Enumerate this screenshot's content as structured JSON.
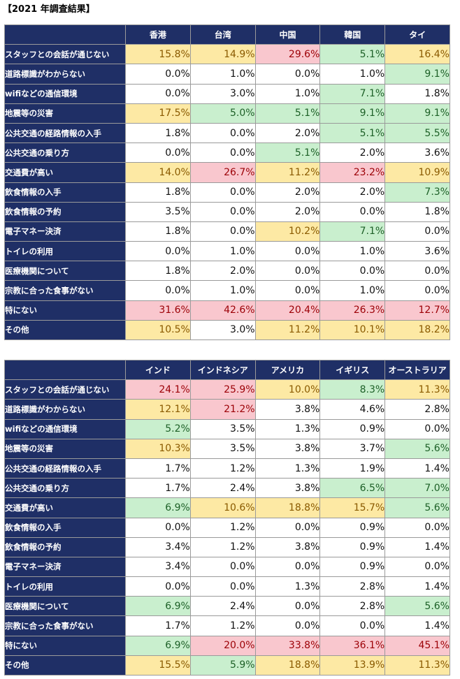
{
  "title": "【2021 年調査結果】",
  "colors": {
    "header_bg": "#1f2f66",
    "yellow": "#fde9a4",
    "green": "#c9efce",
    "red": "#f9c7ce"
  },
  "row_labels": [
    "スタッフとの会話が通じない",
    "道路標識がわからない",
    "wifiなどの通信環境",
    "地震等の災害",
    "公共交通の経路情報の入手",
    "公共交通の乗り方",
    "交通費が高い",
    "飲食情報の入手",
    "飲食情報の予約",
    "電子マネー決済",
    "トイレの利用",
    "医療機関について",
    "宗教に合った食事がない",
    "特にない",
    "その他"
  ],
  "tables": [
    {
      "columns": [
        "香港",
        "台湾",
        "中国",
        "韓国",
        "タイ"
      ],
      "rows": [
        [
          [
            "15.8%",
            "y"
          ],
          [
            "14.9%",
            "y"
          ],
          [
            "29.6%",
            "r"
          ],
          [
            "5.1%",
            "g"
          ],
          [
            "16.4%",
            "y"
          ]
        ],
        [
          [
            "0.0%",
            ""
          ],
          [
            "1.0%",
            ""
          ],
          [
            "0.0%",
            ""
          ],
          [
            "1.0%",
            ""
          ],
          [
            "9.1%",
            "g"
          ]
        ],
        [
          [
            "0.0%",
            ""
          ],
          [
            "3.0%",
            ""
          ],
          [
            "1.0%",
            ""
          ],
          [
            "7.1%",
            "g"
          ],
          [
            "1.8%",
            ""
          ]
        ],
        [
          [
            "17.5%",
            "y"
          ],
          [
            "5.0%",
            "g"
          ],
          [
            "5.1%",
            "g"
          ],
          [
            "9.1%",
            "g"
          ],
          [
            "9.1%",
            "g"
          ]
        ],
        [
          [
            "1.8%",
            ""
          ],
          [
            "0.0%",
            ""
          ],
          [
            "2.0%",
            ""
          ],
          [
            "5.1%",
            "g"
          ],
          [
            "5.5%",
            "g"
          ]
        ],
        [
          [
            "0.0%",
            ""
          ],
          [
            "0.0%",
            ""
          ],
          [
            "5.1%",
            "g"
          ],
          [
            "2.0%",
            ""
          ],
          [
            "3.6%",
            ""
          ]
        ],
        [
          [
            "14.0%",
            "y"
          ],
          [
            "26.7%",
            "r"
          ],
          [
            "11.2%",
            "y"
          ],
          [
            "23.2%",
            "r"
          ],
          [
            "10.9%",
            "y"
          ]
        ],
        [
          [
            "1.8%",
            ""
          ],
          [
            "0.0%",
            ""
          ],
          [
            "2.0%",
            ""
          ],
          [
            "2.0%",
            ""
          ],
          [
            "7.3%",
            "g"
          ]
        ],
        [
          [
            "3.5%",
            ""
          ],
          [
            "0.0%",
            ""
          ],
          [
            "2.0%",
            ""
          ],
          [
            "0.0%",
            ""
          ],
          [
            "1.8%",
            ""
          ]
        ],
        [
          [
            "1.8%",
            ""
          ],
          [
            "0.0%",
            ""
          ],
          [
            "10.2%",
            "y"
          ],
          [
            "7.1%",
            "g"
          ],
          [
            "0.0%",
            ""
          ]
        ],
        [
          [
            "0.0%",
            ""
          ],
          [
            "1.0%",
            ""
          ],
          [
            "0.0%",
            ""
          ],
          [
            "1.0%",
            ""
          ],
          [
            "3.6%",
            ""
          ]
        ],
        [
          [
            "1.8%",
            ""
          ],
          [
            "2.0%",
            ""
          ],
          [
            "0.0%",
            ""
          ],
          [
            "0.0%",
            ""
          ],
          [
            "0.0%",
            ""
          ]
        ],
        [
          [
            "0.0%",
            ""
          ],
          [
            "1.0%",
            ""
          ],
          [
            "0.0%",
            ""
          ],
          [
            "1.0%",
            ""
          ],
          [
            "0.0%",
            ""
          ]
        ],
        [
          [
            "31.6%",
            "r"
          ],
          [
            "42.6%",
            "r"
          ],
          [
            "20.4%",
            "r"
          ],
          [
            "26.3%",
            "r"
          ],
          [
            "12.7%",
            "r"
          ]
        ],
        [
          [
            "10.5%",
            "y"
          ],
          [
            "3.0%",
            ""
          ],
          [
            "11.2%",
            "y"
          ],
          [
            "10.1%",
            "y"
          ],
          [
            "18.2%",
            "y"
          ]
        ]
      ]
    },
    {
      "columns": [
        "インド",
        "インドネシア",
        "アメリカ",
        "イギリス",
        "オーストラリア"
      ],
      "rows": [
        [
          [
            "24.1%",
            "r"
          ],
          [
            "25.9%",
            "r"
          ],
          [
            "10.0%",
            "y"
          ],
          [
            "8.3%",
            "g"
          ],
          [
            "11.3%",
            "y"
          ]
        ],
        [
          [
            "12.1%",
            "y"
          ],
          [
            "21.2%",
            "r"
          ],
          [
            "3.8%",
            ""
          ],
          [
            "4.6%",
            ""
          ],
          [
            "2.8%",
            ""
          ]
        ],
        [
          [
            "5.2%",
            "g"
          ],
          [
            "3.5%",
            ""
          ],
          [
            "1.3%",
            ""
          ],
          [
            "0.9%",
            ""
          ],
          [
            "0.0%",
            ""
          ]
        ],
        [
          [
            "10.3%",
            "y"
          ],
          [
            "3.5%",
            ""
          ],
          [
            "3.8%",
            ""
          ],
          [
            "3.7%",
            ""
          ],
          [
            "5.6%",
            "g"
          ]
        ],
        [
          [
            "1.7%",
            ""
          ],
          [
            "1.2%",
            ""
          ],
          [
            "1.3%",
            ""
          ],
          [
            "1.9%",
            ""
          ],
          [
            "1.4%",
            ""
          ]
        ],
        [
          [
            "1.7%",
            ""
          ],
          [
            "2.4%",
            ""
          ],
          [
            "3.8%",
            ""
          ],
          [
            "6.5%",
            "g"
          ],
          [
            "7.0%",
            "g"
          ]
        ],
        [
          [
            "6.9%",
            "g"
          ],
          [
            "10.6%",
            "y"
          ],
          [
            "18.8%",
            "y"
          ],
          [
            "15.7%",
            "y"
          ],
          [
            "5.6%",
            "g"
          ]
        ],
        [
          [
            "0.0%",
            ""
          ],
          [
            "1.2%",
            ""
          ],
          [
            "0.0%",
            ""
          ],
          [
            "0.9%",
            ""
          ],
          [
            "0.0%",
            ""
          ]
        ],
        [
          [
            "3.4%",
            ""
          ],
          [
            "1.2%",
            ""
          ],
          [
            "3.8%",
            ""
          ],
          [
            "0.9%",
            ""
          ],
          [
            "1.4%",
            ""
          ]
        ],
        [
          [
            "3.4%",
            ""
          ],
          [
            "0.0%",
            ""
          ],
          [
            "0.0%",
            ""
          ],
          [
            "0.9%",
            ""
          ],
          [
            "0.0%",
            ""
          ]
        ],
        [
          [
            "0.0%",
            ""
          ],
          [
            "0.0%",
            ""
          ],
          [
            "1.3%",
            ""
          ],
          [
            "2.8%",
            ""
          ],
          [
            "1.4%",
            ""
          ]
        ],
        [
          [
            "6.9%",
            "g"
          ],
          [
            "2.4%",
            ""
          ],
          [
            "0.0%",
            ""
          ],
          [
            "2.8%",
            ""
          ],
          [
            "5.6%",
            "g"
          ]
        ],
        [
          [
            "1.7%",
            ""
          ],
          [
            "1.2%",
            ""
          ],
          [
            "0.0%",
            ""
          ],
          [
            "0.0%",
            ""
          ],
          [
            "1.4%",
            ""
          ]
        ],
        [
          [
            "6.9%",
            "g"
          ],
          [
            "20.0%",
            "r"
          ],
          [
            "33.8%",
            "r"
          ],
          [
            "36.1%",
            "r"
          ],
          [
            "45.1%",
            "r"
          ]
        ],
        [
          [
            "15.5%",
            "y"
          ],
          [
            "5.9%",
            "g"
          ],
          [
            "18.8%",
            "y"
          ],
          [
            "13.9%",
            "y"
          ],
          [
            "11.3%",
            "y"
          ]
        ]
      ]
    }
  ]
}
